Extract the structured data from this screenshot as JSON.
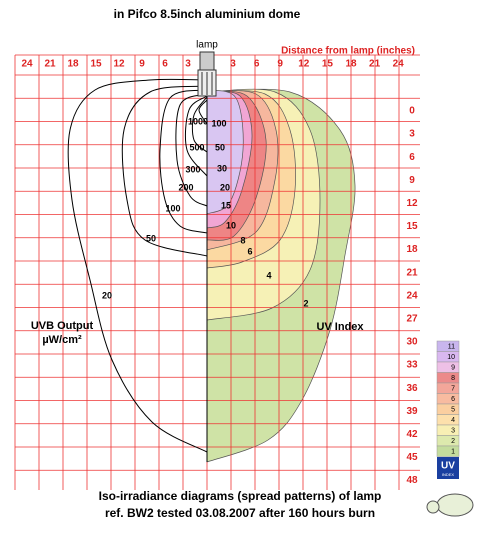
{
  "title": "in Pifco 8.5inch aluminium dome",
  "lamp_label": "lamp",
  "axis": {
    "x_title": "Distance from lamp (inches)",
    "x_left_ticks": [
      "24",
      "21",
      "18",
      "15",
      "12",
      "9",
      "6",
      "3"
    ],
    "x_right_ticks": [
      "3",
      "6",
      "9",
      "12",
      "15",
      "18",
      "21",
      "24"
    ],
    "y_ticks": [
      "0",
      "3",
      "6",
      "9",
      "12",
      "15",
      "18",
      "21",
      "24",
      "27",
      "30",
      "33",
      "36",
      "39",
      "42",
      "45",
      "48"
    ]
  },
  "left": {
    "title": "UVB Output",
    "unit": "µW/cm²",
    "contour_labels": [
      "1000",
      "500",
      "300",
      "200",
      "100",
      "50",
      "20"
    ]
  },
  "right": {
    "title": "UV Index",
    "contour_labels": [
      "100",
      "50",
      "30",
      "20",
      "15",
      "10",
      "8",
      "6",
      "4",
      "2"
    ]
  },
  "legend": {
    "levels": [
      "11",
      "10",
      "9",
      "8",
      "7",
      "6",
      "5",
      "4",
      "3",
      "2",
      "1"
    ],
    "badge": "UV",
    "badge_sub": "INDEX"
  },
  "footer": [
    "Iso-irradiance diagrams (spread patterns) of lamp",
    "ref. BW2  tested 03.08.2007 after 160 hours burn"
  ]
}
